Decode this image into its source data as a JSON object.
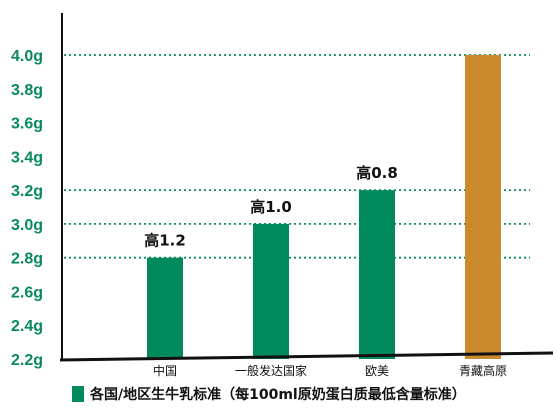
{
  "chart_data": {
    "type": "bar",
    "categories": [
      "中国",
      "一般发达国家",
      "欧美",
      "青藏高原"
    ],
    "values": [
      2.8,
      3.0,
      3.2,
      4.0
    ],
    "colors": [
      "#008a5e",
      "#008a5e",
      "#008a5e",
      "#cc8a2e"
    ],
    "data_labels": [
      "高1.2",
      "高1.0",
      "高0.8",
      ""
    ],
    "ylim": [
      2.2,
      4.0
    ],
    "yticks": [
      {
        "value": 2.2,
        "label": "2.2g"
      },
      {
        "value": 2.4,
        "label": "2.4g"
      },
      {
        "value": 2.6,
        "label": "2.6g"
      },
      {
        "value": 2.8,
        "label": "2.8g"
      },
      {
        "value": 3.0,
        "label": "3.0g"
      },
      {
        "value": 3.2,
        "label": "3.2g"
      },
      {
        "value": 3.4,
        "label": "3.4g"
      },
      {
        "value": 3.6,
        "label": "3.6g"
      },
      {
        "value": 3.8,
        "label": "3.8g"
      },
      {
        "value": 4.0,
        "label": "4.0g"
      }
    ],
    "reference_lines": [
      2.8,
      3.0,
      3.2,
      4.0
    ],
    "reference_line_color": "#0a8a5c",
    "grid": false,
    "legend": {
      "position": "bottom",
      "label": "各国/地区生牛乳标准（每100ml原奶蛋白质最低含量标准）",
      "swatch_color": "#008a5e"
    },
    "axis_color": "#111111",
    "tick_color": "#0a8a5c"
  }
}
